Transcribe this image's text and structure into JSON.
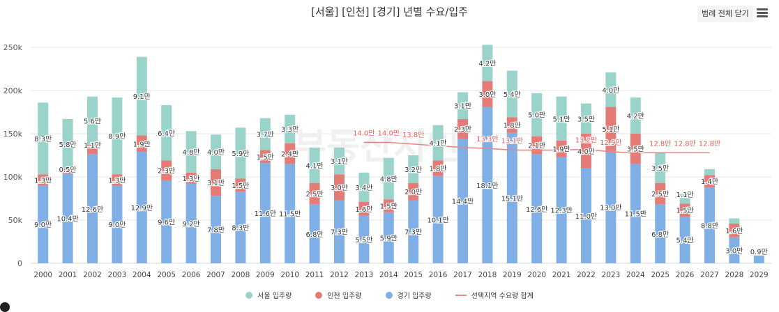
{
  "header": {
    "title": "[서울] [인천] [경기] 년별 수요/입주",
    "legend_toggle_label": "범례 전체 닫기",
    "menu_icon": "hamburger-menu-icon"
  },
  "watermark": "부동산지인",
  "colors": {
    "seoul": "#9ad3c9",
    "incheon": "#e57b76",
    "gyeonggi": "#80afe6",
    "demand_line": "#e88884",
    "demand_label": "#e25a52",
    "grid": "#e6e6e6",
    "axis_text": "#555555"
  },
  "legend": [
    {
      "key": "seoul",
      "label": "서울 입주량",
      "icon": "circle"
    },
    {
      "key": "incheon",
      "label": "인천 입주량",
      "icon": "circle"
    },
    {
      "key": "gyeonggi",
      "label": "경기 입주량",
      "icon": "circle"
    },
    {
      "key": "demand",
      "label": "선택지역 수요량 합계",
      "icon": "line"
    }
  ],
  "chart_data": {
    "type": "bar",
    "stacked": true,
    "title": "[서울] [인천] [경기] 년별 수요/입주",
    "xlabel": "",
    "ylabel": "",
    "ylim": [
      0,
      250000
    ],
    "yticks": [
      0,
      50000,
      100000,
      150000,
      200000,
      250000
    ],
    "ytick_labels": [
      "0",
      "50k",
      "100k",
      "150k",
      "200k",
      "250k"
    ],
    "grid": true,
    "legend_position": "bottom",
    "categories": [
      "2000",
      "2001",
      "2002",
      "2003",
      "2004",
      "2005",
      "2006",
      "2007",
      "2008",
      "2009",
      "2010",
      "2011",
      "2012",
      "2013",
      "2014",
      "2015",
      "2016",
      "2017",
      "2018",
      "2019",
      "2020",
      "2021",
      "2022",
      "2023",
      "2024",
      "2025",
      "2026",
      "2027",
      "2028",
      "2029"
    ],
    "series": [
      {
        "name": "경기 입주량",
        "key": "gyeonggi",
        "unit": "만",
        "values": [
          9.0,
          10.4,
          12.6,
          9.0,
          12.9,
          9.6,
          9.2,
          7.8,
          8.3,
          11.6,
          11.5,
          6.8,
          7.3,
          5.5,
          5.9,
          7.3,
          10.1,
          14.4,
          18.1,
          15.1,
          12.6,
          12.3,
          11.0,
          13.0,
          11.5,
          6.8,
          5.4,
          8.8,
          3.0,
          0.9
        ]
      },
      {
        "name": "인천 입주량",
        "key": "incheon",
        "unit": "만",
        "values": [
          1.3,
          0.5,
          1.1,
          1.3,
          1.9,
          2.3,
          1.3,
          3.1,
          1.5,
          1.5,
          2.4,
          2.5,
          3.0,
          1.6,
          1.5,
          2.0,
          1.8,
          2.3,
          3.0,
          1.8,
          2.1,
          1.9,
          4.0,
          5.1,
          3.5,
          2.5,
          1.5,
          1.4,
          1.6,
          0.0
        ]
      },
      {
        "name": "서울 입주량",
        "key": "seoul",
        "unit": "만",
        "values": [
          8.3,
          5.8,
          5.6,
          8.9,
          9.1,
          6.4,
          4.8,
          4.0,
          5.9,
          3.7,
          3.3,
          4.1,
          3.1,
          3.4,
          4.8,
          3.2,
          4.1,
          3.1,
          4.2,
          5.4,
          5.0,
          5.1,
          3.5,
          4.0,
          4.2,
          3.5,
          1.1,
          0.7,
          0.6,
          0.0
        ]
      },
      {
        "name": "선택지역 수요량 합계",
        "key": "demand",
        "type": "line",
        "unit": "만",
        "values": [
          null,
          null,
          null,
          null,
          null,
          null,
          null,
          null,
          null,
          null,
          null,
          null,
          null,
          14.0,
          14.0,
          13.8,
          13.6,
          13.4,
          13.3,
          13.1,
          13.1,
          13.1,
          13.2,
          12.9,
          12.8,
          12.8,
          12.8,
          12.8,
          null,
          null
        ],
        "labels": [
          null,
          null,
          null,
          null,
          null,
          null,
          null,
          null,
          null,
          null,
          null,
          null,
          null,
          "14.0만",
          "14.0만",
          "13.8만",
          null,
          null,
          "13.3만",
          "13.1만",
          null,
          null,
          "13.2만",
          "12.9만",
          null,
          "12.8만",
          "12.8만",
          "12.8만",
          null,
          null
        ]
      }
    ],
    "bar_labels": {
      "gyeonggi": [
        "9.0만",
        "10.4만",
        "12.6만",
        "9.0만",
        "12.9만",
        "9.6만",
        "9.2만",
        "7.8만",
        "8.3만",
        "11.6만",
        "11.5만",
        "6.8만",
        "7.3만",
        "5.5만",
        "5.9만",
        "7.3만",
        "10.1만",
        "14.4만",
        "18.1만",
        "15.1만",
        "12.6만",
        "12.3만",
        "11.0만",
        "13.0만",
        "11.5만",
        "6.8만",
        "5.4만",
        "8.8만",
        "3.0만",
        "0.9만"
      ],
      "incheon": [
        "1.3만",
        "0.5만",
        "1.1만",
        "1.3만",
        "1.9만",
        "2.3만",
        "1.3만",
        "3.1만",
        "1.5만",
        "1.5만",
        "2.4만",
        "2.5만",
        "3.0만",
        "1.6만",
        "1.5만",
        "2.0만",
        "1.8만",
        "2.3만",
        "3.0만",
        "1.8만",
        "2.1만",
        "1.9만",
        "4.0만",
        "5.1만",
        "3.5만",
        "2.5만",
        "1.5만",
        "1.4만",
        "1.6만",
        null
      ],
      "seoul": [
        "8.3만",
        "5.8만",
        "5.6만",
        "8.9만",
        "9.1만",
        "6.4만",
        "4.8만",
        "4.0만",
        "5.9만",
        "3.7만",
        "3.3만",
        "4.1만",
        "3.1만",
        "3.4만",
        "4.8만",
        "3.2만",
        "4.1만",
        "3.1만",
        "4.2만",
        "5.4만",
        "5.0만",
        "5.1만",
        "3.5만",
        "4.0만",
        "4.2만",
        "3.5만",
        "1.1만",
        null,
        null,
        null
      ]
    }
  }
}
